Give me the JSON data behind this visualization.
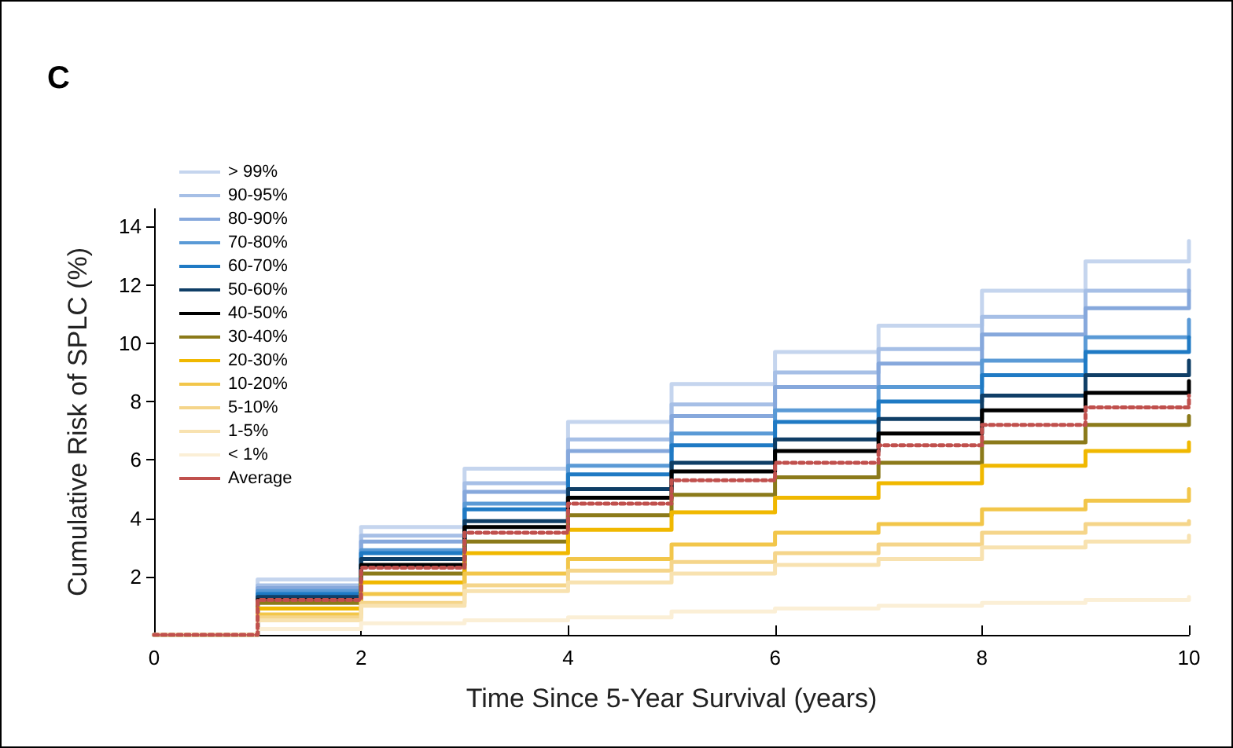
{
  "chart_data": {
    "type": "step",
    "title": "C",
    "xlabel": "Time Since 5-Year Survival (years)",
    "ylabel": "Cumulative Risk of SPLC (%)",
    "x": [
      0,
      1,
      2,
      3,
      4,
      5,
      6,
      7,
      8,
      9,
      10
    ],
    "xlim": [
      0,
      10
    ],
    "xticks": [
      0,
      2,
      4,
      6,
      8,
      10
    ],
    "ylim": [
      0,
      14.6
    ],
    "yticks": [
      2,
      4,
      6,
      8,
      10,
      12,
      14
    ],
    "grid": false,
    "legend": "top left",
    "marker": "none",
    "series": [
      {
        "name": "> 99%",
        "color": "#c5d5ee",
        "values": [
          0,
          1.9,
          3.7,
          5.7,
          7.3,
          8.6,
          9.7,
          10.6,
          11.8,
          12.8,
          13.5
        ]
      },
      {
        "name": "90-95%",
        "color": "#a6bfe6",
        "values": [
          0,
          1.7,
          3.4,
          5.2,
          6.7,
          7.9,
          9.0,
          9.8,
          10.9,
          11.8,
          12.5
        ]
      },
      {
        "name": "80-90%",
        "color": "#86a8dc",
        "values": [
          0,
          1.6,
          3.2,
          4.9,
          6.3,
          7.5,
          8.5,
          9.3,
          10.3,
          11.2,
          11.8
        ]
      },
      {
        "name": "70-80%",
        "color": "#5a9ad6",
        "values": [
          0,
          1.5,
          2.9,
          4.5,
          5.8,
          6.9,
          7.7,
          8.5,
          9.4,
          10.2,
          10.8
        ]
      },
      {
        "name": "60-70%",
        "color": "#1f7ac4",
        "values": [
          0,
          1.4,
          2.8,
          4.3,
          5.5,
          6.5,
          7.3,
          8.0,
          8.9,
          9.7,
          10.2
        ]
      },
      {
        "name": "50-60%",
        "color": "#0f3e66",
        "values": [
          0,
          1.3,
          2.6,
          3.9,
          5.0,
          5.9,
          6.7,
          7.4,
          8.2,
          8.9,
          9.4
        ]
      },
      {
        "name": "40-50%",
        "color": "#000000",
        "values": [
          0,
          1.2,
          2.4,
          3.7,
          4.7,
          5.6,
          6.3,
          6.9,
          7.7,
          8.3,
          8.7
        ]
      },
      {
        "name": "30-40%",
        "color": "#8b7a1a",
        "values": [
          0,
          1.1,
          2.1,
          3.2,
          4.1,
          4.8,
          5.4,
          5.9,
          6.6,
          7.2,
          7.5
        ]
      },
      {
        "name": "20-30%",
        "color": "#f0b800",
        "values": [
          0,
          0.9,
          1.8,
          2.8,
          3.6,
          4.2,
          4.7,
          5.2,
          5.8,
          6.3,
          6.6
        ]
      },
      {
        "name": "10-20%",
        "color": "#f2c64a",
        "values": [
          0,
          0.7,
          1.4,
          2.1,
          2.6,
          3.1,
          3.5,
          3.8,
          4.3,
          4.6,
          5.0
        ]
      },
      {
        "name": "5-10%",
        "color": "#f5d58a",
        "values": [
          0,
          0.6,
          1.1,
          1.7,
          2.2,
          2.5,
          2.8,
          3.1,
          3.5,
          3.8,
          3.9
        ]
      },
      {
        "name": "1-5%",
        "color": "#f8e2b0",
        "values": [
          0,
          0.5,
          1.0,
          1.5,
          1.8,
          2.1,
          2.4,
          2.6,
          3.0,
          3.2,
          3.4
        ]
      },
      {
        "name": "< 1%",
        "color": "#fbefd6",
        "values": [
          0,
          0.2,
          0.4,
          0.5,
          0.6,
          0.8,
          0.9,
          1.0,
          1.1,
          1.2,
          1.3
        ]
      },
      {
        "name": "Average",
        "color": "#c0504d",
        "line_style": "dotted",
        "values": [
          0,
          1.2,
          2.3,
          3.5,
          4.5,
          5.3,
          5.9,
          6.5,
          7.2,
          7.8,
          8.2
        ]
      }
    ]
  }
}
